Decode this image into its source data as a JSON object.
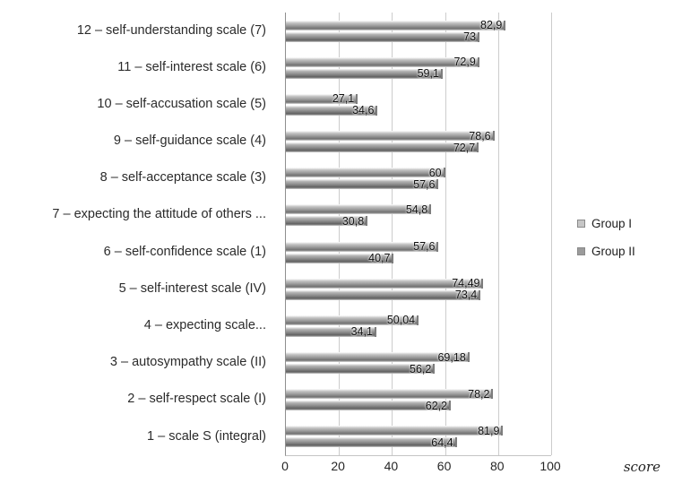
{
  "chart_data": {
    "type": "bar",
    "orientation": "horizontal",
    "title": "",
    "xlabel": "score",
    "xlim": [
      0,
      100
    ],
    "xticks": [
      0,
      20,
      40,
      60,
      80,
      100
    ],
    "grid": true,
    "gridline_color": "#cccccc",
    "axis_color": "#8f8f8f",
    "legend_position": "right",
    "categories": [
      "12 – self-understanding scale (7)",
      "11 – self-interest scale (6)",
      "10 – self-accusation scale (5)",
      "9 – self-guidance scale (4)",
      "8 – self-acceptance scale (3)",
      "7 – expecting the attitude of others ...",
      "6 – self-confidence scale (1)",
      "5 – self-interest scale (IV)",
      "4 – expecting scale...",
      "3 – autosympathy scale (II)",
      "2 – self-respect scale (I)",
      "1 – scale S (integral)"
    ],
    "series": [
      {
        "name": "Group I",
        "color": "#c6c6c6",
        "values": [
          82.9,
          72.9,
          27.1,
          78.6,
          60,
          54.8,
          57.6,
          74.49,
          50.04,
          69.18,
          78.2,
          81.9
        ],
        "labels": [
          "82,9",
          "72,9",
          "27,1",
          "78,6",
          "60",
          "54,8",
          "57,6",
          "74,49",
          "50,04",
          "69,18",
          "78,2",
          "81,9"
        ]
      },
      {
        "name": "Group II",
        "color": "#9b9b9b",
        "values": [
          73,
          59.1,
          34.6,
          72.7,
          57.6,
          30.8,
          40.7,
          73.4,
          34.1,
          56.2,
          62.2,
          64.4
        ],
        "labels": [
          "73",
          "59,1",
          "34,6",
          "72,7",
          "57,6",
          "30,8",
          "40,7",
          "73,4",
          "34,1",
          "56,2",
          "62,2",
          "64,4"
        ]
      }
    ]
  }
}
